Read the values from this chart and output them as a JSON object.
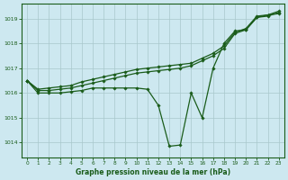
{
  "title": "Graphe pression niveau de la mer (hPa)",
  "background_color": "#cde8f0",
  "grid_color": "#a8c8cc",
  "line_color": "#1a5c1a",
  "xlim": [
    -0.5,
    23.5
  ],
  "ylim": [
    1013.4,
    1019.6
  ],
  "yticks": [
    1014,
    1015,
    1016,
    1017,
    1018,
    1019
  ],
  "xticks": [
    0,
    1,
    2,
    3,
    4,
    5,
    6,
    7,
    8,
    9,
    10,
    11,
    12,
    13,
    14,
    15,
    16,
    17,
    18,
    19,
    20,
    21,
    22,
    23
  ],
  "series1": {
    "x": [
      0,
      1,
      2,
      3,
      4,
      5,
      6,
      7,
      8,
      9,
      10,
      11,
      12,
      13,
      14,
      15,
      16,
      17,
      18,
      19,
      20,
      21,
      22,
      23
    ],
    "y": [
      1016.5,
      1016.0,
      1016.0,
      1016.0,
      1016.05,
      1016.1,
      1016.2,
      1016.2,
      1016.2,
      1016.2,
      1016.2,
      1016.15,
      1015.5,
      1013.85,
      1013.9,
      1016.0,
      1015.0,
      1017.0,
      1018.0,
      1018.5,
      1018.55,
      1019.05,
      1019.15,
      1019.2
    ]
  },
  "series2": {
    "x": [
      0,
      1,
      2,
      3,
      4,
      5,
      6,
      7,
      8,
      9,
      10,
      11,
      12,
      13,
      14,
      15,
      16,
      17,
      18,
      19,
      20,
      21,
      22,
      23
    ],
    "y": [
      1016.5,
      1016.1,
      1016.1,
      1016.15,
      1016.2,
      1016.3,
      1016.4,
      1016.5,
      1016.6,
      1016.7,
      1016.8,
      1016.85,
      1016.9,
      1016.95,
      1017.0,
      1017.1,
      1017.3,
      1017.5,
      1017.8,
      1018.4,
      1018.55,
      1019.05,
      1019.1,
      1019.25
    ]
  },
  "series3": {
    "x": [
      0,
      1,
      2,
      3,
      4,
      5,
      6,
      7,
      8,
      9,
      10,
      11,
      12,
      13,
      14,
      15,
      16,
      17,
      18,
      19,
      20,
      21,
      22,
      23
    ],
    "y": [
      1016.5,
      1016.15,
      1016.2,
      1016.25,
      1016.3,
      1016.45,
      1016.55,
      1016.65,
      1016.75,
      1016.85,
      1016.95,
      1017.0,
      1017.05,
      1017.1,
      1017.15,
      1017.2,
      1017.4,
      1017.6,
      1017.9,
      1018.45,
      1018.6,
      1019.1,
      1019.15,
      1019.3
    ]
  }
}
